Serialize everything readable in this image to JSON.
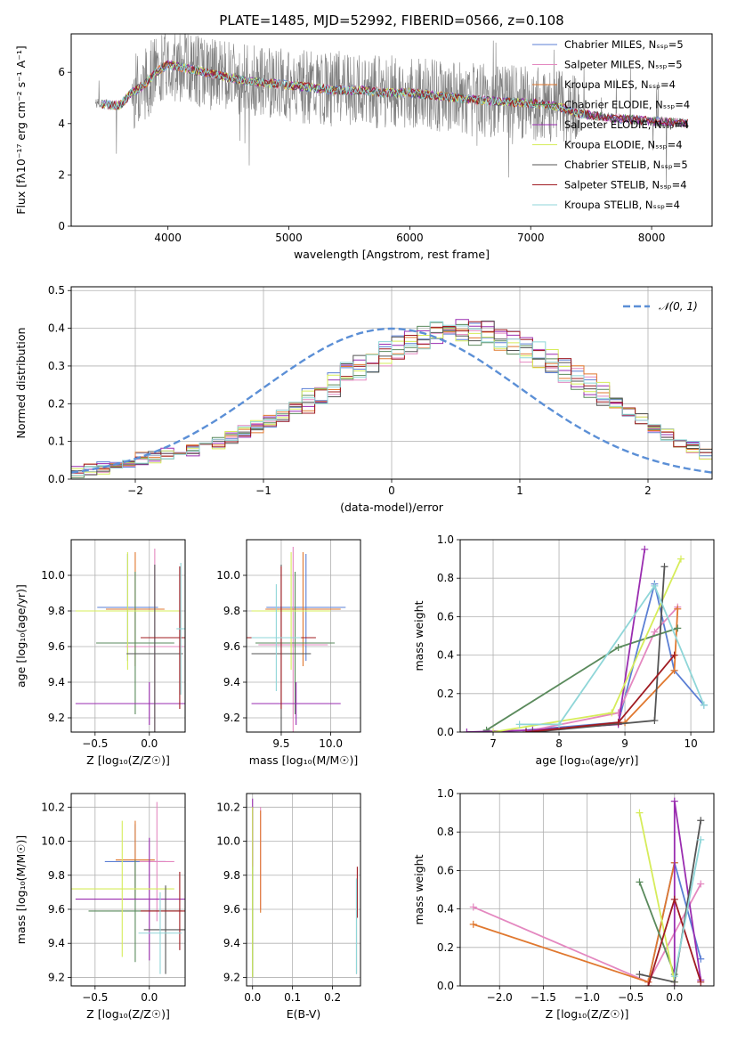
{
  "title": "PLATE=1485, MJD=52992, FIBERID=0566, z=0.108",
  "colors": {
    "chabrier_miles": "#5b7fd4",
    "salpeter_miles": "#e488c0",
    "kroupa_miles": "#e0782f",
    "chabrier_elodie": "#5a8a5c",
    "salpeter_elodie": "#9a2db0",
    "kroupa_elodie": "#d6ec5a",
    "chabrier_stelib": "#555555",
    "salpeter_stelib": "#a01c22",
    "kroupa_stelib": "#8fd6d8",
    "observed": "#808080",
    "normal": "#5b8fd6",
    "grid": "#b0b0b0"
  },
  "chart_data": [
    {
      "id": "spectrum",
      "type": "line",
      "xlabel": "wavelength [Angstrom, rest frame]",
      "ylabel": "Flux [fλ10⁻¹⁷ erg cm⁻² s⁻¹ A⁻¹]",
      "xlim": [
        3200,
        8500
      ],
      "ylim": [
        0,
        7.5
      ],
      "xticks": [
        "4000",
        "5000",
        "6000",
        "7000",
        "8000"
      ],
      "yticks": [
        "0",
        "2",
        "4",
        "6"
      ],
      "legend_position": "top-right",
      "legend": [
        "Chabrier MILES, Nₛₛₚ=5",
        "Salpeter MILES, Nₛₛₚ=5",
        "Kroupa MILES, Nₛₛₚ=4",
        "Chabrier ELODIE, Nₛₛₚ=4",
        "Salpeter ELODIE, Nₛₛₚ=4",
        "Kroupa ELODIE, Nₛₛₚ=4",
        "Chabrier STELIB, Nₛₛₚ=5",
        "Salpeter STELIB, Nₛₛₚ=4",
        "Kroupa STELIB, Nₛₛₚ=4"
      ],
      "continuum": {
        "x": [
          3400,
          3600,
          3700,
          3800,
          3900,
          4000,
          4200,
          4400,
          4600,
          4800,
          5000,
          5200,
          5400,
          5600,
          5800,
          6000,
          6200,
          6400,
          6600,
          6800,
          7000,
          7200,
          7400,
          7700,
          8000,
          8300
        ],
        "y": [
          4.8,
          4.7,
          5.2,
          5.5,
          6.0,
          6.3,
          6.1,
          5.9,
          5.7,
          5.6,
          5.5,
          5.4,
          5.3,
          5.3,
          5.2,
          5.2,
          5.1,
          5.0,
          4.9,
          4.85,
          4.8,
          4.7,
          4.4,
          4.2,
          4.1,
          4.0
        ]
      }
    },
    {
      "id": "residuals",
      "type": "bar",
      "xlabel": "(data-model)/error",
      "ylabel": "Normed distribution",
      "xlim": [
        -2.5,
        2.5
      ],
      "ylim": [
        0,
        0.51
      ],
      "xticks": [
        "−2",
        "−1",
        "0",
        "1",
        "2"
      ],
      "yticks": [
        "0.0",
        "0.1",
        "0.2",
        "0.3",
        "0.4",
        "0.5"
      ],
      "legend_position": "top-right",
      "legend": [
        "𝒩(0, 1)"
      ],
      "bin_edges_start": -2.5,
      "bin_width": 0.1,
      "values": [
        0.02,
        0.025,
        0.03,
        0.035,
        0.045,
        0.055,
        0.06,
        0.065,
        0.07,
        0.075,
        0.085,
        0.095,
        0.11,
        0.125,
        0.14,
        0.155,
        0.17,
        0.19,
        0.205,
        0.225,
        0.25,
        0.275,
        0.295,
        0.31,
        0.33,
        0.345,
        0.36,
        0.375,
        0.385,
        0.39,
        0.395,
        0.39,
        0.385,
        0.375,
        0.36,
        0.345,
        0.33,
        0.31,
        0.29,
        0.27,
        0.25,
        0.225,
        0.2,
        0.18,
        0.16,
        0.14,
        0.12,
        0.1,
        0.085,
        0.07,
        0.06
      ],
      "jitter_seeds": [
        1,
        2,
        3,
        4,
        5,
        6,
        7,
        8,
        9
      ]
    },
    {
      "id": "age_vs_Z",
      "type": "scatter",
      "xlabel": "Z [log₁₀(Z/Z☉)]",
      "ylabel": "age  [log₁₀(age/yr)]",
      "xlim": [
        -0.72,
        0.33
      ],
      "ylim": [
        9.12,
        10.2
      ],
      "xticks": [
        "−0.5",
        "0.0"
      ],
      "xtick_values": [
        -0.5,
        0.0
      ],
      "yticks": [
        "9.2",
        "9.4",
        "9.6",
        "9.8",
        "10.0"
      ],
      "ytick_values": [
        9.2,
        9.4,
        9.6,
        9.8,
        10.0
      ],
      "points": [
        {
          "x": -0.2,
          "y": 9.82,
          "xerr": 0.28,
          "yerr": 0.3,
          "c": "chabrier_miles"
        },
        {
          "x": 0.05,
          "y": 9.6,
          "xerr": 0.27,
          "yerr": 0.55,
          "c": "salpeter_miles"
        },
        {
          "x": -0.13,
          "y": 9.81,
          "xerr": 0.27,
          "yerr": 0.32,
          "c": "kroupa_miles"
        },
        {
          "x": -0.13,
          "y": 9.62,
          "xerr": 0.36,
          "yerr": 0.4,
          "c": "chabrier_elodie"
        },
        {
          "x": 0.0,
          "y": 9.28,
          "xerr": 0.68,
          "yerr": 0.12,
          "c": "salpeter_elodie"
        },
        {
          "x": -0.2,
          "y": 9.8,
          "xerr": 0.48,
          "yerr": 0.33,
          "c": "kroupa_elodie"
        },
        {
          "x": 0.05,
          "y": 9.56,
          "xerr": 0.26,
          "yerr": 0.5,
          "c": "chabrier_stelib"
        },
        {
          "x": 0.28,
          "y": 9.65,
          "xerr": 0.36,
          "yerr": 0.4,
          "c": "salpeter_stelib"
        },
        {
          "x": 0.29,
          "y": 9.7,
          "xerr": 0.04,
          "yerr": 0.37,
          "c": "kroupa_stelib"
        }
      ]
    },
    {
      "id": "age_vs_mass",
      "type": "scatter",
      "xlabel": "mass [log₁₀(M/M☉)]",
      "ylabel": "",
      "xlim": [
        9.15,
        10.3
      ],
      "ylim": [
        9.12,
        10.2
      ],
      "xticks": [
        "9.5",
        "10.0"
      ],
      "xtick_values": [
        9.5,
        10.0
      ],
      "yticks": [
        "9.2",
        "9.4",
        "9.6",
        "9.8",
        "10.0"
      ],
      "ytick_values": [
        9.2,
        9.4,
        9.6,
        9.8,
        10.0
      ],
      "points": [
        {
          "x": 9.75,
          "y": 9.82,
          "xerr": 0.4,
          "yerr": 0.3,
          "c": "chabrier_miles"
        },
        {
          "x": 9.62,
          "y": 9.61,
          "xerr": 0.35,
          "yerr": 0.55,
          "c": "salpeter_miles"
        },
        {
          "x": 9.72,
          "y": 9.81,
          "xerr": 0.38,
          "yerr": 0.32,
          "c": "kroupa_miles"
        },
        {
          "x": 9.64,
          "y": 9.62,
          "xerr": 0.4,
          "yerr": 0.4,
          "c": "chabrier_elodie"
        },
        {
          "x": 9.65,
          "y": 9.28,
          "xerr": 0.45,
          "yerr": 0.12,
          "c": "salpeter_elodie"
        },
        {
          "x": 9.6,
          "y": 9.8,
          "xerr": 0.4,
          "yerr": 0.33,
          "c": "kroupa_elodie"
        },
        {
          "x": 9.5,
          "y": 9.56,
          "xerr": 0.3,
          "yerr": 0.5,
          "c": "chabrier_stelib"
        },
        {
          "x": 9.5,
          "y": 9.65,
          "xerr": 0.35,
          "yerr": 0.4,
          "c": "salpeter_stelib"
        },
        {
          "x": 9.45,
          "y": 9.65,
          "xerr": 0.25,
          "yerr": 0.3,
          "c": "kroupa_stelib"
        }
      ]
    },
    {
      "id": "weight_vs_age",
      "type": "line",
      "xlabel": "age  [log₁₀(age/yr)]",
      "ylabel": "mass weight",
      "xlim": [
        6.5,
        10.35
      ],
      "ylim": [
        0,
        1.0
      ],
      "xticks": [
        "7",
        "8",
        "9",
        "10"
      ],
      "xtick_values": [
        7,
        8,
        9,
        10
      ],
      "yticks": [
        "0.0",
        "0.2",
        "0.4",
        "0.6",
        "0.8",
        "1.0"
      ],
      "ytick_values": [
        0,
        0.2,
        0.4,
        0.6,
        0.8,
        1.0
      ],
      "series": [
        {
          "c": "chabrier_miles",
          "x": [
            7.5,
            8.9,
            9.45,
            9.75,
            10.2
          ],
          "y": [
            0.01,
            0.05,
            0.77,
            0.32,
            0.14
          ]
        },
        {
          "c": "salpeter_miles",
          "x": [
            7.6,
            8.9,
            9.45,
            9.8
          ],
          "y": [
            0.01,
            0.1,
            0.52,
            0.65
          ]
        },
        {
          "c": "kroupa_miles",
          "x": [
            7.5,
            9.0,
            9.75,
            9.8
          ],
          "y": [
            0.0,
            0.05,
            0.32,
            0.64
          ]
        },
        {
          "c": "chabrier_elodie",
          "x": [
            6.9,
            8.9,
            9.8
          ],
          "y": [
            0.01,
            0.44,
            0.54
          ]
        },
        {
          "c": "salpeter_elodie",
          "x": [
            6.6,
            7.6,
            8.9,
            9.3
          ],
          "y": [
            0.0,
            0.01,
            0.04,
            0.95
          ]
        },
        {
          "c": "kroupa_elodie",
          "x": [
            7.0,
            8.8,
            9.85
          ],
          "y": [
            0.0,
            0.1,
            0.9
          ]
        },
        {
          "c": "chabrier_stelib",
          "x": [
            7.6,
            9.45,
            9.6
          ],
          "y": [
            0.0,
            0.06,
            0.86
          ]
        },
        {
          "c": "salpeter_stelib",
          "x": [
            7.5,
            8.9,
            9.75
          ],
          "y": [
            0.0,
            0.05,
            0.4
          ]
        },
        {
          "c": "kroupa_stelib",
          "x": [
            7.4,
            8.0,
            9.45,
            10.2
          ],
          "y": [
            0.04,
            0.04,
            0.76,
            0.14
          ]
        }
      ]
    },
    {
      "id": "mass_vs_Z",
      "type": "scatter",
      "xlabel": "Z [log₁₀(Z/Z☉)]",
      "ylabel": "mass [log₁₀(M/M☉)]",
      "xlim": [
        -0.72,
        0.33
      ],
      "ylim": [
        9.15,
        10.28
      ],
      "xticks": [
        "−0.5",
        "0.0"
      ],
      "xtick_values": [
        -0.5,
        0.0
      ],
      "yticks": [
        "9.2",
        "9.4",
        "9.6",
        "9.8",
        "10.0",
        "10.2"
      ],
      "ytick_values": [
        9.2,
        9.4,
        9.6,
        9.8,
        10.0,
        10.2
      ],
      "points": [
        {
          "x": -0.13,
          "y": 9.88,
          "xerr": 0.28,
          "yerr": 0.22,
          "c": "chabrier_miles"
        },
        {
          "x": 0.07,
          "y": 9.88,
          "xerr": 0.16,
          "yerr": 0.35,
          "c": "salpeter_miles"
        },
        {
          "x": -0.13,
          "y": 9.89,
          "xerr": 0.18,
          "yerr": 0.23,
          "c": "kroupa_miles"
        },
        {
          "x": -0.13,
          "y": 9.59,
          "xerr": 0.43,
          "yerr": 0.3,
          "c": "chabrier_elodie"
        },
        {
          "x": 0.0,
          "y": 9.66,
          "xerr": 0.68,
          "yerr": 0.36,
          "c": "salpeter_elodie"
        },
        {
          "x": -0.25,
          "y": 9.72,
          "xerr": 0.48,
          "yerr": 0.4,
          "c": "kroupa_elodie"
        },
        {
          "x": 0.15,
          "y": 9.48,
          "xerr": 0.2,
          "yerr": 0.26,
          "c": "chabrier_stelib"
        },
        {
          "x": 0.28,
          "y": 9.59,
          "xerr": 0.36,
          "yerr": 0.23,
          "c": "salpeter_stelib"
        },
        {
          "x": 0.1,
          "y": 9.46,
          "xerr": 0.2,
          "yerr": 0.24,
          "c": "kroupa_stelib"
        }
      ]
    },
    {
      "id": "mass_vs_ebv",
      "type": "scatter",
      "xlabel": "E(B-V)",
      "ylabel": "",
      "xlim": [
        -0.015,
        0.27
      ],
      "ylim": [
        9.15,
        10.28
      ],
      "xticks": [
        "0.0",
        "0.1",
        "0.2"
      ],
      "xtick_values": [
        0.0,
        0.1,
        0.2
      ],
      "yticks": [
        "9.2",
        "9.4",
        "9.6",
        "9.8",
        "10.0",
        "10.2"
      ],
      "ytick_values": [
        9.2,
        9.4,
        9.6,
        9.8,
        10.0,
        10.2
      ],
      "points": [
        {
          "x": 0.0,
          "y": 9.7,
          "xerr": 0.0,
          "yerr": 0.5,
          "c": "chabrier_miles"
        },
        {
          "x": 0.02,
          "y": 9.9,
          "xerr": 0.0,
          "yerr": 0.3,
          "c": "salpeter_miles"
        },
        {
          "x": 0.02,
          "y": 9.88,
          "xerr": 0.0,
          "yerr": 0.3,
          "c": "kroupa_miles"
        },
        {
          "x": 0.0,
          "y": 9.7,
          "xerr": 0.0,
          "yerr": 0.5,
          "c": "chabrier_elodie"
        },
        {
          "x": 0.0,
          "y": 10.05,
          "xerr": 0.0,
          "yerr": 0.2,
          "c": "salpeter_elodie"
        },
        {
          "x": 0.0,
          "y": 9.7,
          "xerr": 0.0,
          "yerr": 0.5,
          "c": "kroupa_elodie"
        },
        {
          "x": 0.26,
          "y": 9.5,
          "xerr": 0.0,
          "yerr": 0.28,
          "c": "chabrier_stelib"
        },
        {
          "x": 0.262,
          "y": 9.7,
          "xerr": 0.0,
          "yerr": 0.15,
          "c": "salpeter_stelib"
        },
        {
          "x": 0.26,
          "y": 9.5,
          "xerr": 0.0,
          "yerr": 0.28,
          "c": "kroupa_stelib"
        }
      ]
    },
    {
      "id": "weight_vs_Z",
      "type": "line",
      "xlabel": "Z [log₁₀(Z/Z☉)]",
      "ylabel": "mass weight",
      "xlim": [
        -2.45,
        0.45
      ],
      "ylim": [
        0,
        1.0
      ],
      "xticks": [
        "−2.0",
        "−1.5",
        "−1.0",
        "−0.5",
        "0.0"
      ],
      "xtick_values": [
        -2.0,
        -1.5,
        -1.0,
        -0.5,
        0.0
      ],
      "yticks": [
        "0.0",
        "0.2",
        "0.4",
        "0.6",
        "0.8",
        "1.0"
      ],
      "ytick_values": [
        0,
        0.2,
        0.4,
        0.6,
        0.8,
        1.0
      ],
      "series": [
        {
          "c": "chabrier_miles",
          "x": [
            -0.3,
            0.0,
            0.3
          ],
          "y": [
            0.02,
            0.64,
            0.14
          ]
        },
        {
          "c": "salpeter_miles",
          "x": [
            -2.3,
            -0.3,
            0.3
          ],
          "y": [
            0.41,
            0.02,
            0.53
          ]
        },
        {
          "c": "kroupa_miles",
          "x": [
            -2.3,
            -0.3,
            0.0
          ],
          "y": [
            0.32,
            0.02,
            0.64
          ]
        },
        {
          "c": "chabrier_elodie",
          "x": [
            -0.4,
            0.0
          ],
          "y": [
            0.54,
            0.06
          ]
        },
        {
          "c": "salpeter_elodie",
          "x": [
            0.0,
            0.0,
            0.3
          ],
          "y": [
            0.0,
            0.96,
            0.03
          ]
        },
        {
          "c": "kroupa_elodie",
          "x": [
            -0.4,
            0.0
          ],
          "y": [
            0.9,
            0.02
          ]
        },
        {
          "c": "chabrier_stelib",
          "x": [
            -0.4,
            0.0,
            0.3
          ],
          "y": [
            0.06,
            0.02,
            0.86
          ]
        },
        {
          "c": "salpeter_stelib",
          "x": [
            -0.3,
            0.0,
            0.3
          ],
          "y": [
            0.0,
            0.45,
            0.02
          ]
        },
        {
          "c": "kroupa_stelib",
          "x": [
            0.0,
            0.3
          ],
          "y": [
            0.05,
            0.76
          ]
        }
      ]
    }
  ]
}
